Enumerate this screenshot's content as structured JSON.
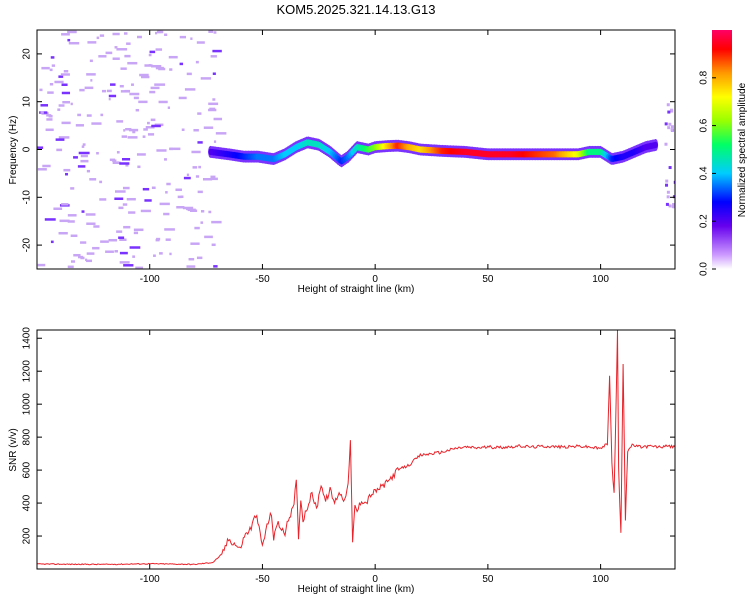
{
  "title": "KOM5.2025.321.14.13.G13",
  "chart_data": [
    {
      "type": "heatmap",
      "name": "spectrogram",
      "xlabel": "Height of straight line (km)",
      "ylabel": "Frequency (Hz)",
      "xlim": [
        -150,
        133
      ],
      "ylim": [
        -25,
        25
      ],
      "xticks": [
        -100,
        -50,
        0,
        50,
        100
      ],
      "yticks": [
        -20,
        -10,
        0,
        10,
        20
      ],
      "colorbar": {
        "label": "Normalized spectral amplitude",
        "range": [
          0,
          1
        ],
        "ticks": [
          0.0,
          0.2,
          0.4,
          0.6,
          0.8
        ],
        "tick_labels": [
          "0.0",
          "0.2",
          "0.4",
          "0.6",
          "0.8"
        ],
        "colormap": [
          "#ffffff",
          "#cc99ff",
          "#6600ee",
          "#0000ff",
          "#00ccff",
          "#00ff66",
          "#99ff00",
          "#ffff00",
          "#ff9900",
          "#ff0000",
          "#ff0066"
        ]
      },
      "ridge": {
        "x": [
          -73,
          -65,
          -58,
          -52,
          -45,
          -40,
          -35,
          -30,
          -25,
          -20,
          -15,
          -12,
          -8,
          -3,
          0,
          5,
          10,
          15,
          20,
          30,
          40,
          50,
          60,
          70,
          80,
          90,
          95,
          100,
          105,
          110,
          115,
          120,
          125
        ],
        "y": [
          -0.5,
          -1,
          -1.5,
          -1.5,
          -2,
          -1,
          0.5,
          1.5,
          1,
          -0.5,
          -2.5,
          -1.5,
          0.5,
          0,
          0.5,
          0.7,
          0.8,
          0.5,
          0,
          -0.3,
          -0.5,
          -1,
          -1,
          -1,
          -1,
          -1,
          -0.5,
          -0.5,
          -2,
          -1.5,
          -0.5,
          0.5,
          1
        ]
      },
      "ridge_amplitude": [
        0.2,
        0.25,
        0.3,
        0.35,
        0.35,
        0.4,
        0.4,
        0.45,
        0.45,
        0.4,
        0.3,
        0.35,
        0.45,
        0.55,
        0.6,
        0.75,
        0.9,
        0.8,
        0.75,
        0.9,
        0.95,
        0.95,
        0.95,
        0.9,
        0.85,
        0.7,
        0.5,
        0.5,
        0.3,
        0.25,
        0.25,
        0.2,
        0.2
      ]
    },
    {
      "type": "line",
      "name": "snr",
      "xlabel": "Height of straight line (km)",
      "ylabel": "SNR (v/v)",
      "xlim": [
        -150,
        133
      ],
      "ylim": [
        0,
        1450
      ],
      "xticks": [
        -100,
        -50,
        0,
        50,
        100
      ],
      "yticks": [
        200,
        400,
        600,
        800,
        1000,
        1200,
        1400
      ],
      "color": "#e8232a",
      "x": [
        -150,
        -120,
        -100,
        -80,
        -72,
        -68,
        -65,
        -62,
        -60,
        -58,
        -55,
        -53,
        -52,
        -50,
        -48,
        -46,
        -45,
        -43,
        -42,
        -40,
        -38,
        -36,
        -35,
        -34,
        -33,
        -32,
        -30,
        -28,
        -26,
        -24,
        -22,
        -20,
        -18,
        -16,
        -14,
        -12,
        -11,
        -10,
        -9,
        -8,
        -6,
        -4,
        -2,
        0,
        5,
        10,
        15,
        20,
        25,
        30,
        35,
        40,
        45,
        50,
        55,
        60,
        65,
        70,
        75,
        80,
        85,
        90,
        95,
        100,
        103,
        104,
        105,
        106,
        107,
        107.5,
        108,
        109,
        110,
        111,
        112,
        114,
        118,
        122,
        126,
        130,
        133
      ],
      "y": [
        30,
        28,
        32,
        28,
        40,
        90,
        180,
        150,
        120,
        200,
        250,
        330,
        280,
        140,
        260,
        340,
        180,
        300,
        240,
        220,
        320,
        380,
        550,
        200,
        420,
        300,
        380,
        460,
        360,
        520,
        410,
        480,
        400,
        470,
        420,
        500,
        780,
        150,
        380,
        350,
        420,
        400,
        450,
        470,
        520,
        600,
        630,
        690,
        700,
        710,
        730,
        740,
        735,
        740,
        738,
        742,
        745,
        740,
        745,
        742,
        740,
        745,
        740,
        730,
        760,
        1180,
        650,
        450,
        1100,
        1450,
        600,
        200,
        1250,
        300,
        720,
        750,
        740,
        745,
        740,
        745,
        740
      ]
    }
  ]
}
